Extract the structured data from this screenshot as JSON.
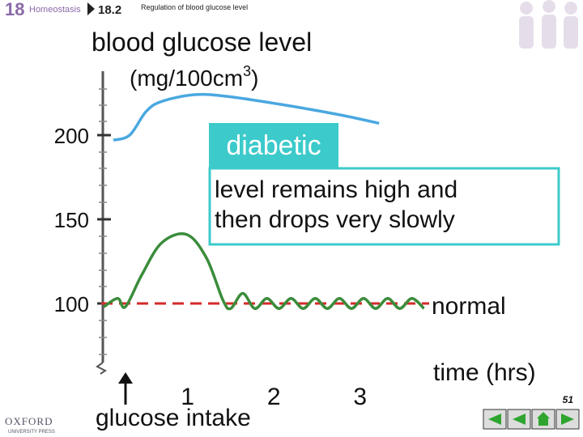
{
  "header": {
    "chapter": "18",
    "chapter_title": "Homeostasis",
    "section": "18.2",
    "section_title": "Regulation of blood glucose level"
  },
  "chart_data": {
    "type": "line",
    "title": "blood glucose level",
    "y_label": {
      "pre": "(mg/100cm",
      "sup": "3",
      "post": ")"
    },
    "x_label": "time (hrs)",
    "xlim": [
      0,
      3.8
    ],
    "xticks": [
      1,
      2,
      3
    ],
    "ylim": [
      63,
      237
    ],
    "yticks": [
      100,
      150,
      200
    ],
    "reference_value": 100,
    "reference_color": "#d42a2a",
    "series": [
      {
        "name": "diabetic",
        "color": "#4aa8e0",
        "x": [
          0.14,
          0.33,
          0.52,
          0.7,
          1.08,
          1.46,
          2.11,
          2.77,
          3.22
        ],
        "values": [
          197,
          200,
          214,
          220,
          224,
          223,
          218,
          212,
          207
        ]
      },
      {
        "name": "normal",
        "color": "#3b8c3b",
        "x": [
          0.03,
          0.19,
          0.28,
          0.47,
          0.7,
          0.99,
          1.22,
          1.41,
          1.5,
          1.64,
          1.78,
          1.92,
          2.06,
          2.2,
          2.34,
          2.48,
          2.62,
          2.76,
          2.9,
          3.04,
          3.18,
          3.32,
          3.46,
          3.6,
          3.74
        ],
        "values": [
          98,
          103,
          98,
          117,
          136,
          141,
          127,
          102,
          97,
          106,
          97,
          103,
          97,
          103,
          97,
          103,
          97,
          103,
          97,
          103,
          97,
          103,
          97,
          103,
          97
        ]
      }
    ],
    "annotation": "level remains high and then drops very slowly",
    "event_label": "glucose intake"
  },
  "footer": {
    "page": "51",
    "publisher": "OXFORD",
    "publisher_sub": "UNIVERSITY PRESS"
  }
}
